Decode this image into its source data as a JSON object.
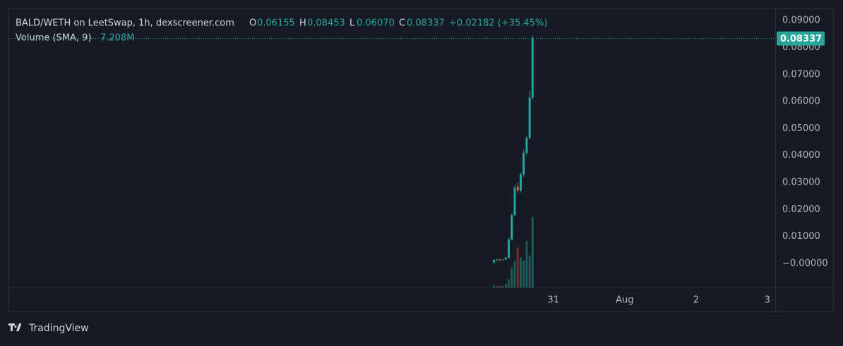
{
  "chart_data": {
    "type": "candlestick",
    "title": "BALD/WETH on LeetSwap, 1h, dexscreener.com",
    "legend": {
      "open_label": "O",
      "open": "0.06155",
      "high_label": "H",
      "high": "0.08453",
      "low_label": "L",
      "low": "0.06070",
      "close_label": "C",
      "close": "0.08337",
      "change": "+0.02182 (+35.45%)"
    },
    "volume_label": "Volume (SMA, 9)",
    "volume_value": "7.208M",
    "x": [
      30.167,
      30.208,
      30.25,
      30.292,
      30.333,
      30.375,
      30.417,
      30.458,
      30.5,
      30.542,
      30.583,
      30.625,
      30.667,
      30.708
    ],
    "open": [
      0.0005,
      0.0013,
      0.0014,
      0.0012,
      0.0015,
      0.0021,
      0.0089,
      0.018,
      0.0285,
      0.027,
      0.033,
      0.041,
      0.0465,
      0.06155
    ],
    "high": [
      0.0015,
      0.0018,
      0.0019,
      0.0016,
      0.0024,
      0.0096,
      0.0186,
      0.029,
      0.03,
      0.0338,
      0.042,
      0.0472,
      0.064,
      0.08453
    ],
    "low": [
      -0.0003,
      0.001,
      0.0011,
      0.0011,
      0.0013,
      0.0019,
      0.0085,
      0.0175,
      0.0262,
      0.0263,
      0.0322,
      0.0402,
      0.046,
      0.0607
    ],
    "close": [
      0.0013,
      0.0014,
      0.0012,
      0.0015,
      0.0021,
      0.0089,
      0.018,
      0.028,
      0.027,
      0.033,
      0.041,
      0.0465,
      0.06155,
      0.08337
    ],
    "volume": [
      600000,
      300000,
      500000,
      400000,
      900000,
      2000000,
      5000000,
      6700000,
      10000000,
      7500000,
      6700000,
      11700000,
      8000000,
      17700000
    ],
    "volume_lim": [
      0,
      70000000
    ],
    "up_color": "#26a69a",
    "down_color": "#ef5350",
    "volume_up_color": "#1e5a55",
    "volume_down_color": "#7b2a33",
    "xlim": [
      23.36,
      34.11
    ],
    "xticks": [
      {
        "value": 31,
        "label": "31"
      },
      {
        "value": 32,
        "label": "Aug"
      },
      {
        "value": 33,
        "label": "2"
      },
      {
        "value": 34,
        "label": "3"
      }
    ],
    "ylim": [
      -0.0089,
      0.0945
    ],
    "yticks": [
      {
        "value": 0.09,
        "label": "0.09000"
      },
      {
        "value": 0.08,
        "label": "0.08000"
      },
      {
        "value": 0.07,
        "label": "0.07000"
      },
      {
        "value": 0.06,
        "label": "0.06000"
      },
      {
        "value": 0.05,
        "label": "0.05000"
      },
      {
        "value": 0.04,
        "label": "0.04000"
      },
      {
        "value": 0.03,
        "label": "0.03000"
      },
      {
        "value": 0.02,
        "label": "0.02000"
      },
      {
        "value": 0.01,
        "label": "0.01000"
      },
      {
        "value": 0,
        "label": "−0.00000"
      }
    ],
    "watermark": "TradingView"
  }
}
